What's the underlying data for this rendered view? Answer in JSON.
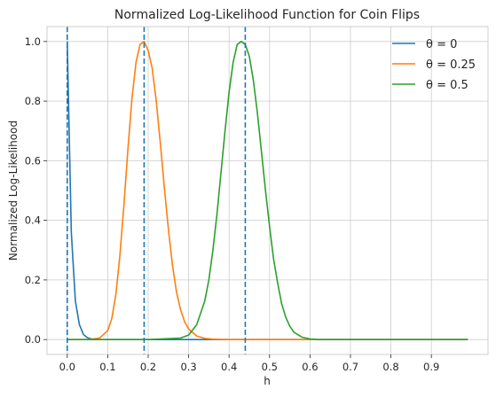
{
  "chart_data": {
    "type": "line",
    "title": "Normalized Log-Likelihood Function for Coin Flips",
    "xlabel": "h",
    "ylabel": "Normalized Log-Likelihood",
    "xlim": [
      -0.05,
      1.04
    ],
    "ylim": [
      -0.05,
      1.05
    ],
    "xticks": [
      0.0,
      0.1,
      0.2,
      0.3,
      0.4,
      0.5,
      0.6,
      0.7,
      0.8,
      0.9
    ],
    "xtick_labels": [
      "0.0",
      "0.1",
      "0.2",
      "0.3",
      "0.4",
      "0.5",
      "0.6",
      "0.7",
      "0.8",
      "0.9"
    ],
    "yticks": [
      0.0,
      0.2,
      0.4,
      0.6,
      0.8,
      1.0
    ],
    "ytick_labels": [
      "0.0",
      "0.2",
      "0.4",
      "0.6",
      "0.8",
      "1.0"
    ],
    "grid": true,
    "legend_placement": "top-right",
    "series": [
      {
        "name": "θ = 0",
        "color": "#1f77b4",
        "x": [
          0.0,
          0.01,
          0.02,
          0.03,
          0.04,
          0.05,
          0.06,
          0.07,
          0.08,
          0.1,
          0.2,
          0.4,
          0.6,
          0.8,
          0.99
        ],
        "y": [
          1.0,
          0.36,
          0.13,
          0.05,
          0.017,
          0.006,
          0.002,
          0.001,
          0.0,
          0.0,
          0.0,
          0.0,
          0.0,
          0.0,
          0.0
        ]
      },
      {
        "name": "θ = 0.25",
        "color": "#ff7f0e",
        "x": [
          0.0,
          0.05,
          0.08,
          0.1,
          0.11,
          0.12,
          0.13,
          0.14,
          0.15,
          0.16,
          0.17,
          0.18,
          0.19,
          0.2,
          0.21,
          0.22,
          0.23,
          0.24,
          0.25,
          0.26,
          0.27,
          0.28,
          0.29,
          0.3,
          0.32,
          0.34,
          0.36,
          0.4,
          0.5,
          0.99
        ],
        "y": [
          0.0,
          0.0,
          0.005,
          0.03,
          0.07,
          0.15,
          0.28,
          0.45,
          0.64,
          0.81,
          0.93,
          0.99,
          1.0,
          0.97,
          0.91,
          0.8,
          0.66,
          0.51,
          0.37,
          0.25,
          0.16,
          0.1,
          0.06,
          0.035,
          0.012,
          0.004,
          0.001,
          0.0,
          0.0,
          0.0
        ]
      },
      {
        "name": "θ = 0.5",
        "color": "#2ca02c",
        "x": [
          0.0,
          0.2,
          0.28,
          0.3,
          0.32,
          0.34,
          0.35,
          0.36,
          0.37,
          0.38,
          0.39,
          0.4,
          0.41,
          0.42,
          0.43,
          0.44,
          0.45,
          0.46,
          0.47,
          0.48,
          0.49,
          0.5,
          0.51,
          0.52,
          0.53,
          0.54,
          0.55,
          0.56,
          0.58,
          0.6,
          0.62,
          0.65,
          0.7,
          0.99
        ],
        "y": [
          0.0,
          0.0,
          0.005,
          0.015,
          0.05,
          0.13,
          0.2,
          0.3,
          0.42,
          0.56,
          0.7,
          0.83,
          0.93,
          0.99,
          1.0,
          0.99,
          0.95,
          0.87,
          0.76,
          0.63,
          0.5,
          0.38,
          0.27,
          0.19,
          0.12,
          0.075,
          0.045,
          0.025,
          0.008,
          0.002,
          0.0,
          0.0,
          0.0,
          0.0
        ]
      }
    ],
    "vlines": [
      {
        "x": 0.0,
        "color": "#1f77b4"
      },
      {
        "x": 0.19,
        "color": "#1f77b4"
      },
      {
        "x": 0.44,
        "color": "#1f77b4"
      }
    ]
  }
}
